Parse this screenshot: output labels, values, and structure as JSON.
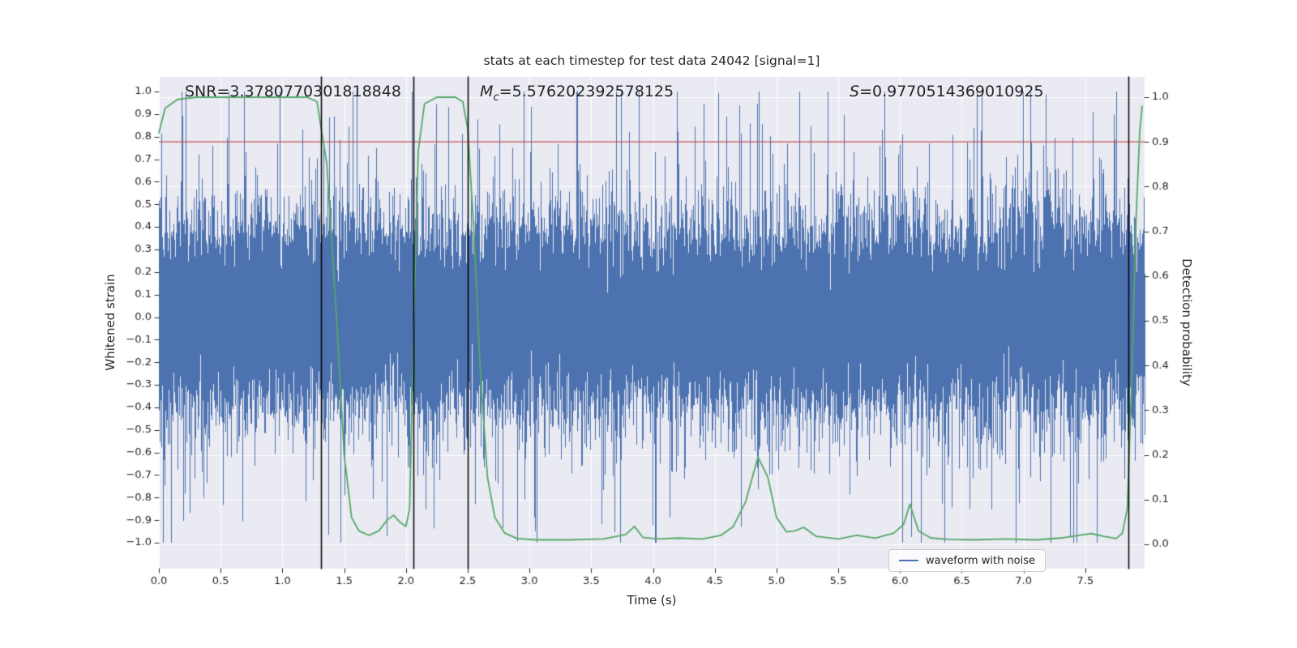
{
  "title": "stats at each timestep for test data 24042 [signal=1]",
  "annotations": {
    "snr": "SNR=3.3780770301818848",
    "mc_var": "M",
    "mc_sub": "c",
    "mc_value": "=5.576202392578125",
    "s_var": "S",
    "s_value": "=0.9770514369010925"
  },
  "axes": {
    "xlabel": "Time (s)",
    "ylabel_left": "Whitened strain",
    "ylabel_right": "Detection probability"
  },
  "legend": {
    "label": "waveform with noise"
  },
  "chart_data": {
    "type": "line",
    "title": "stats at each timestep for test data 24042 [signal=1]",
    "xlabel": "Time (s)",
    "ylabel_left": "Whitened strain",
    "ylabel_right": "Detection probability",
    "xlim": [
      0.0,
      7.98
    ],
    "ylim_left": [
      -1.115,
      1.065
    ],
    "ylim_right": [
      -0.054,
      1.045
    ],
    "x_ticks": [
      0.0,
      0.5,
      1.0,
      1.5,
      2.0,
      2.5,
      3.0,
      3.5,
      4.0,
      4.5,
      5.0,
      5.5,
      6.0,
      6.5,
      7.0,
      7.5
    ],
    "left_ticks": [
      1.0,
      0.9,
      0.8,
      0.7,
      0.6,
      0.5,
      0.4,
      0.3,
      0.2,
      0.1,
      0.0,
      -0.1,
      -0.2,
      -0.3,
      -0.4,
      -0.5,
      -0.6,
      -0.7,
      -0.8,
      -0.9,
      -1.0
    ],
    "right_ticks": [
      1.0,
      0.9,
      0.8,
      0.7,
      0.6,
      0.5,
      0.4,
      0.3,
      0.2,
      0.1,
      0.0
    ],
    "grid": true,
    "legend_position": "lower right",
    "colors": {
      "waveform": "#4c72b0",
      "probability": "#55a868",
      "threshold": "#c44e52",
      "vline": "#000000",
      "axes_bg": "#eaeaf2",
      "grid": "#ffffff",
      "text": "#262626"
    },
    "stats": {
      "SNR": "3.3780770301818848",
      "Mc": "5.576202392578125",
      "S": "0.9770514369010925",
      "test_id": "24042",
      "signal": 1
    },
    "threshold": {
      "axis": "right",
      "value": 0.9
    },
    "vlines_x": [
      1.31,
      2.06,
      2.5,
      7.85
    ],
    "waveform_noise": {
      "label": "waveform with noise",
      "axis": "left",
      "seed": 24042,
      "samples_per_column": 24,
      "base_std": 0.21,
      "spike_prob": 0.03,
      "spike_scale": 2.3,
      "clip": [
        -1.0,
        1.0
      ]
    },
    "detection_probability": {
      "axis": "right",
      "x": [
        0.0,
        0.05,
        0.15,
        0.3,
        0.6,
        0.9,
        1.2,
        1.28,
        1.36,
        1.44,
        1.5,
        1.56,
        1.62,
        1.7,
        1.78,
        1.85,
        1.9,
        1.95,
        2.0,
        2.03,
        2.06,
        2.1,
        2.15,
        2.25,
        2.4,
        2.46,
        2.5,
        2.55,
        2.6,
        2.66,
        2.72,
        2.8,
        2.9,
        3.05,
        3.3,
        3.6,
        3.78,
        3.85,
        3.92,
        4.05,
        4.2,
        4.4,
        4.55,
        4.65,
        4.75,
        4.85,
        4.93,
        5.0,
        5.08,
        5.15,
        5.22,
        5.32,
        5.5,
        5.65,
        5.8,
        5.95,
        6.03,
        6.08,
        6.15,
        6.25,
        6.4,
        6.6,
        6.85,
        7.1,
        7.3,
        7.45,
        7.55,
        7.65,
        7.75,
        7.8,
        7.84,
        7.88,
        7.91,
        7.94,
        7.96
      ],
      "y": [
        0.92,
        0.975,
        0.995,
        1.0,
        1.0,
        1.0,
        1.0,
        0.99,
        0.85,
        0.5,
        0.2,
        0.06,
        0.03,
        0.02,
        0.03,
        0.055,
        0.065,
        0.05,
        0.04,
        0.08,
        0.45,
        0.88,
        0.985,
        1.0,
        1.0,
        0.99,
        0.93,
        0.7,
        0.4,
        0.15,
        0.06,
        0.025,
        0.013,
        0.01,
        0.01,
        0.012,
        0.022,
        0.04,
        0.015,
        0.012,
        0.014,
        0.012,
        0.02,
        0.04,
        0.095,
        0.195,
        0.15,
        0.06,
        0.028,
        0.03,
        0.038,
        0.018,
        0.012,
        0.02,
        0.014,
        0.025,
        0.045,
        0.09,
        0.03,
        0.014,
        0.011,
        0.01,
        0.012,
        0.01,
        0.014,
        0.02,
        0.024,
        0.018,
        0.013,
        0.025,
        0.08,
        0.4,
        0.72,
        0.92,
        0.98
      ]
    }
  }
}
